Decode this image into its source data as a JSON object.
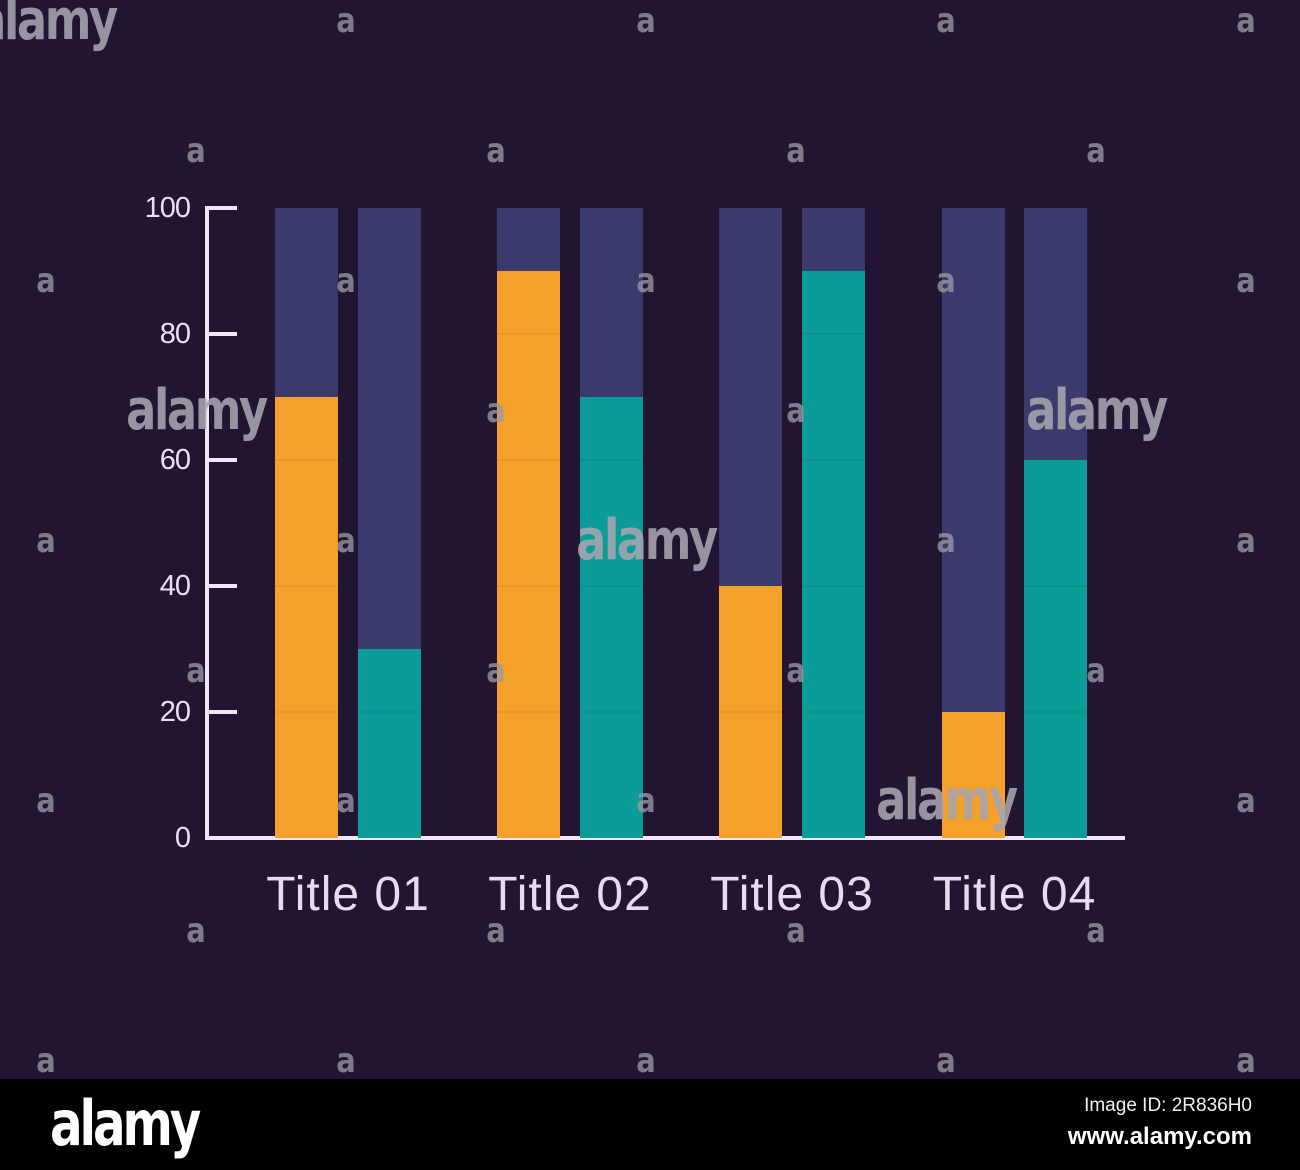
{
  "chart_data": {
    "type": "bar",
    "title": "",
    "categories": [
      "Title 01",
      "Title 02",
      "Title 03",
      "Title 04"
    ],
    "series": [
      {
        "name": "orange-series",
        "color": "#f5a02b",
        "values": [
          70,
          90,
          40,
          20
        ]
      },
      {
        "name": "teal-series",
        "color": "#0c9c97",
        "values": [
          30,
          70,
          90,
          60
        ]
      }
    ],
    "stack_total": 100,
    "remainder_color": "#3b3a6d",
    "yticks": [
      0,
      20,
      40,
      60,
      80,
      100
    ],
    "ylim": [
      0,
      100
    ],
    "xlabel": "",
    "ylabel": "",
    "grid": false,
    "legend": "none",
    "axis_color": "#f0e7f6",
    "tick_label_color": "#eadef2",
    "category_label_color": "#e6dcef",
    "background_color": "#211531"
  },
  "watermark": {
    "tile_letter": "a",
    "brand_text": "alamy",
    "color": "#9b98a4"
  },
  "footer": {
    "brand_logo": "alamy",
    "image_id": "Image ID: 2R836H0",
    "website": "www.alamy.com"
  }
}
